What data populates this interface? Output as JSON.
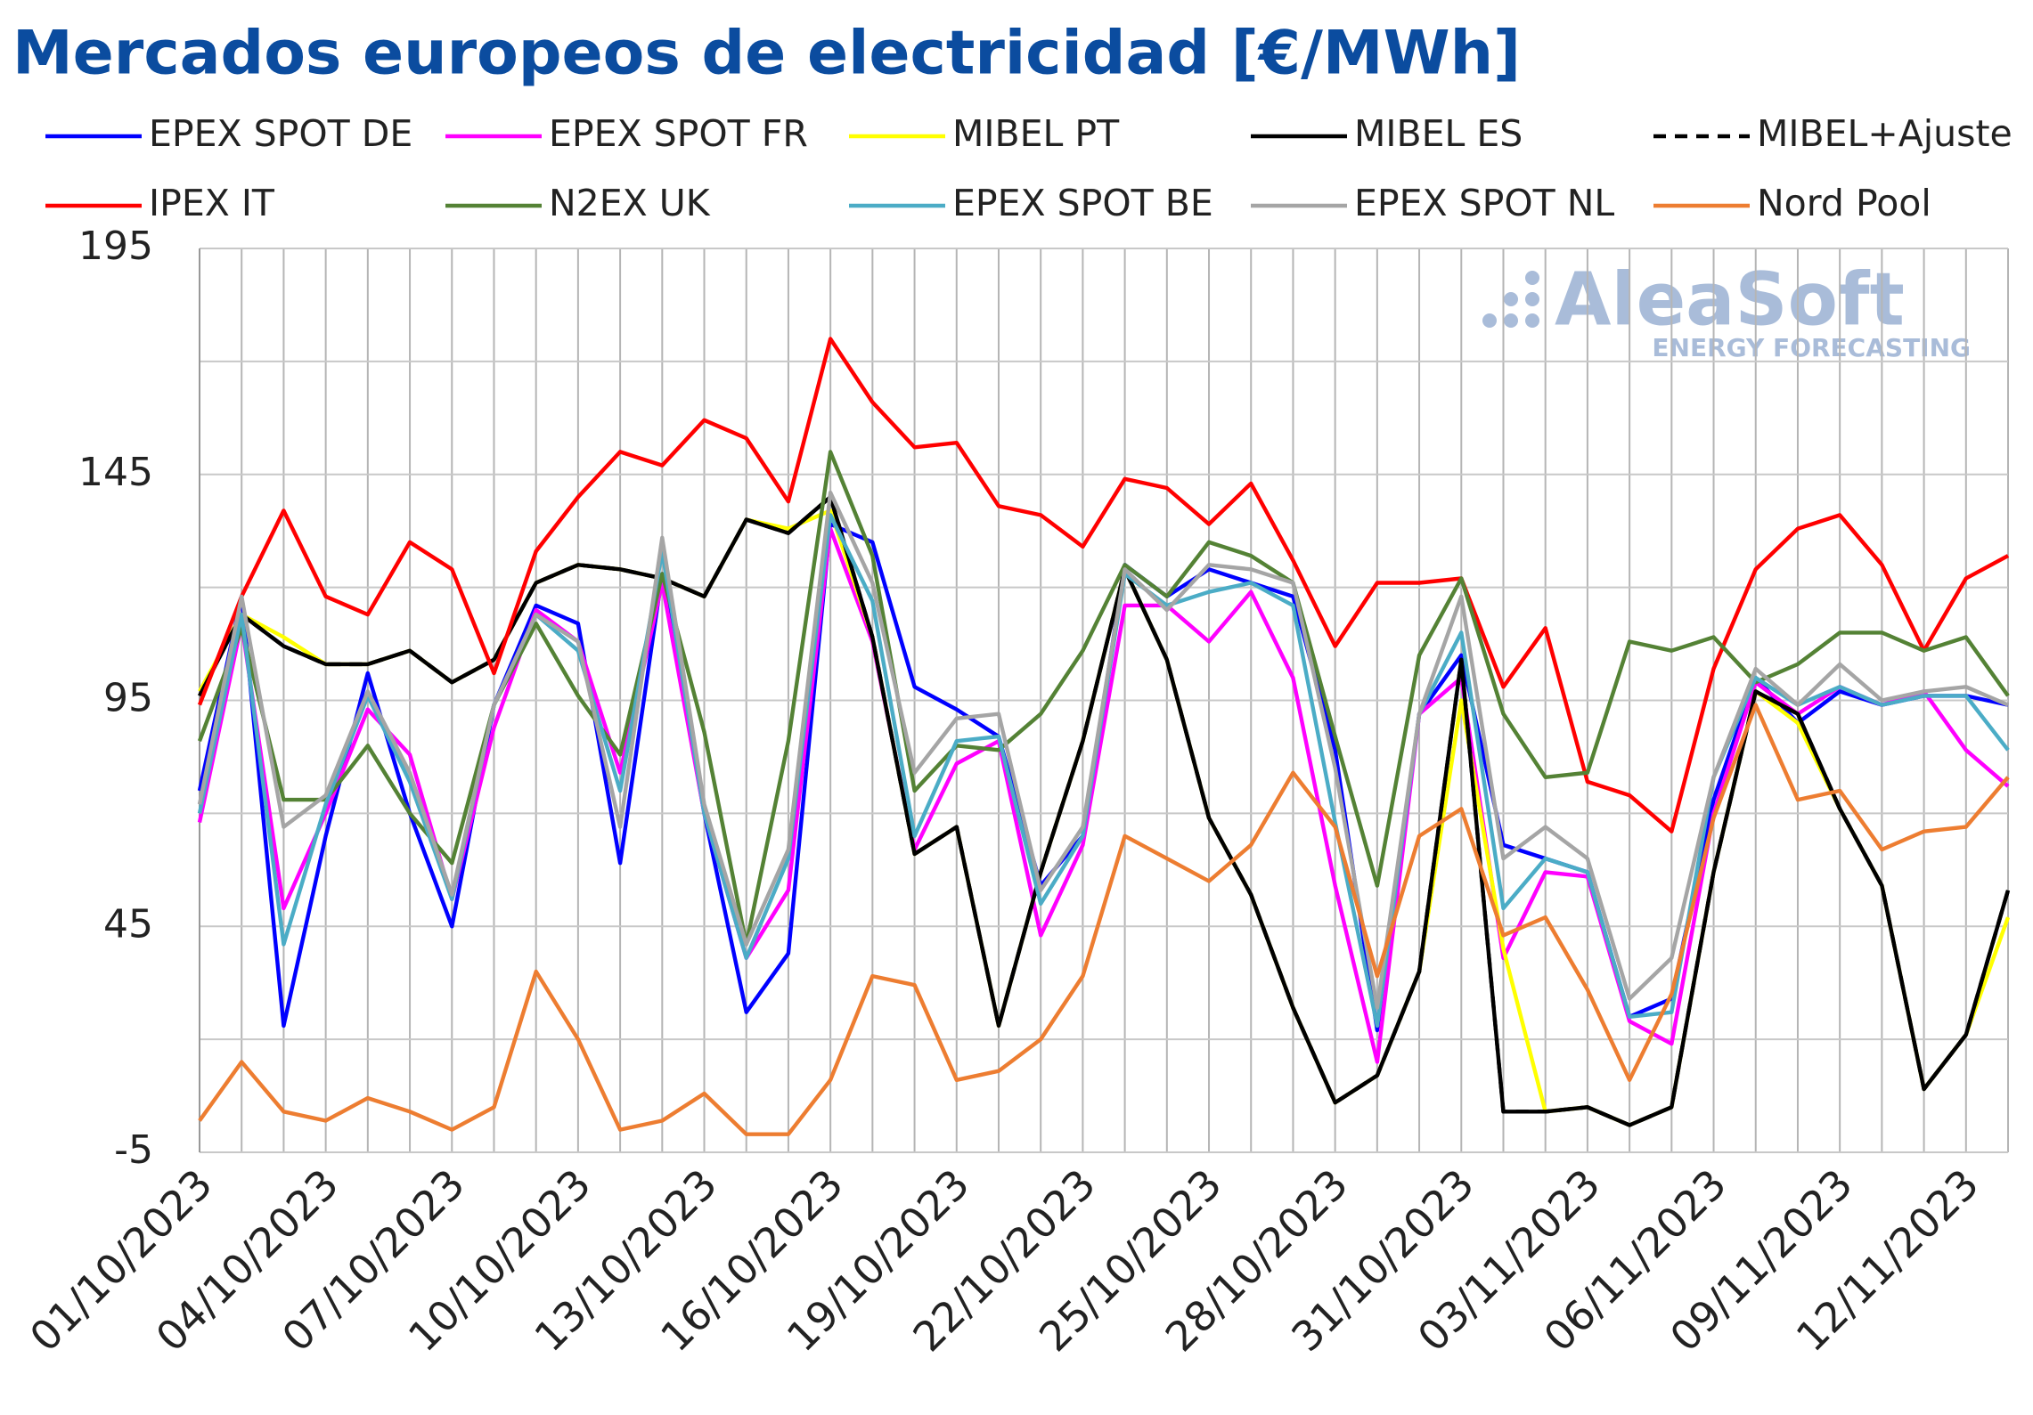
{
  "chart_data": {
    "type": "line",
    "title": "Mercados europeos de electricidad [€/MWh]",
    "watermark": {
      "name": "AleaSoft",
      "tagline": "ENERGY FORECASTING"
    },
    "categories": [
      "01/10/2023",
      null,
      null,
      "04/10/2023",
      null,
      null,
      "07/10/2023",
      null,
      null,
      "10/10/2023",
      null,
      null,
      "13/10/2023",
      null,
      null,
      "16/10/2023",
      null,
      null,
      "19/10/2023",
      null,
      null,
      "22/10/2023",
      null,
      null,
      "25/10/2023",
      null,
      null,
      "28/10/2023",
      null,
      null,
      "31/10/2023",
      null,
      null,
      "03/11/2023",
      null,
      null,
      "06/11/2023",
      null,
      null,
      "09/11/2023",
      null,
      null,
      "12/11/2023",
      null
    ],
    "ylim": [
      -5,
      195
    ],
    "yticks": [
      -5,
      45,
      95,
      145,
      195
    ],
    "ygrid_minor": [
      20,
      70,
      120,
      170
    ],
    "grid": true,
    "legend": "top",
    "series": [
      {
        "name": "EPEX SPOT DE",
        "color": "#0000ff",
        "values": [
          75,
          118,
          23,
          65,
          101,
          70,
          45,
          94,
          116,
          112,
          59,
          123,
          70,
          26,
          39,
          134,
          130,
          98,
          93,
          87,
          54,
          65,
          125,
          118,
          124,
          121,
          118,
          84,
          22,
          92,
          105,
          63,
          60,
          57,
          25,
          29,
          73,
          100,
          90,
          97,
          94,
          96,
          96,
          94
        ]
      },
      {
        "name": "EPEX SPOT FR",
        "color": "#ff00ff",
        "values": [
          68,
          112,
          49,
          70,
          93,
          83,
          51,
          89,
          115,
          108,
          79,
          121,
          70,
          38,
          53,
          133,
          108,
          62,
          81,
          86,
          43,
          63,
          116,
          116,
          108,
          119,
          100,
          54,
          15,
          92,
          100,
          38,
          57,
          56,
          24,
          19,
          70,
          99,
          92,
          98,
          94,
          97,
          84,
          76
        ]
      },
      {
        "name": "MIBEL PT",
        "color": "#ffff00",
        "values": [
          97,
          114,
          109,
          103,
          103,
          106,
          99,
          104,
          121,
          125,
          124,
          122,
          118,
          135,
          133,
          137,
          109,
          61,
          67,
          23,
          57,
          86,
          124,
          104,
          69,
          52,
          27,
          6,
          12,
          35,
          95,
          40,
          4,
          5,
          1,
          5,
          57,
          97,
          90,
          71,
          54,
          9,
          21,
          47
        ]
      },
      {
        "name": "MIBEL ES",
        "color": "#000000",
        "values": [
          96,
          114,
          107,
          103,
          103,
          106,
          99,
          104,
          121,
          125,
          124,
          122,
          118,
          135,
          132,
          140,
          109,
          61,
          67,
          23,
          57,
          86,
          124,
          104,
          69,
          52,
          27,
          6,
          12,
          35,
          104,
          4,
          4,
          5,
          1,
          5,
          57,
          97,
          92,
          71,
          54,
          9,
          21,
          53
        ]
      },
      {
        "name": "MIBEL+Ajuste",
        "color": "#000000",
        "dash": true,
        "values": [
          96,
          114,
          107,
          103,
          103,
          106,
          99,
          104,
          121,
          125,
          124,
          122,
          118,
          135,
          132,
          140,
          109,
          61,
          67,
          23,
          57,
          86,
          124,
          104,
          69,
          52,
          27,
          6,
          12,
          35,
          104,
          4,
          4,
          5,
          1,
          5,
          57,
          97,
          92,
          71,
          54,
          9,
          21,
          53
        ]
      },
      {
        "name": "IPEX IT",
        "color": "#ff0000",
        "values": [
          94,
          118,
          137,
          118,
          114,
          130,
          124,
          101,
          128,
          140,
          150,
          147,
          157,
          153,
          139,
          175,
          161,
          151,
          152,
          138,
          136,
          129,
          144,
          142,
          134,
          143,
          126,
          107,
          121,
          121,
          122,
          98,
          111,
          77,
          74,
          66,
          102,
          124,
          133,
          136,
          125,
          106,
          122,
          127
        ]
      },
      {
        "name": "N2EX UK",
        "color": "#548235",
        "values": [
          86,
          111,
          73,
          73,
          85,
          70,
          59,
          94,
          112,
          96,
          83,
          123,
          88,
          41,
          86,
          150,
          127,
          75,
          85,
          84,
          92,
          106,
          125,
          118,
          130,
          127,
          121,
          87,
          54,
          105,
          122,
          92,
          78,
          79,
          108,
          106,
          109,
          99,
          103,
          110,
          110,
          106,
          109,
          96
        ]
      },
      {
        "name": "EPEX SPOT BE",
        "color": "#4bacc6",
        "values": [
          70,
          114,
          41,
          72,
          96,
          77,
          51,
          94,
          114,
          106,
          75,
          128,
          70,
          38,
          60,
          136,
          117,
          65,
          86,
          87,
          50,
          65,
          123,
          116,
          119,
          121,
          116,
          68,
          23,
          92,
          110,
          49,
          60,
          57,
          25,
          26,
          78,
          100,
          94,
          98,
          94,
          96,
          96,
          84
        ]
      },
      {
        "name": "EPEX SPOT NL",
        "color": "#a5a5a5",
        "values": [
          72,
          118,
          67,
          74,
          97,
          79,
          52,
          94,
          114,
          108,
          67,
          131,
          72,
          41,
          62,
          141,
          121,
          79,
          91,
          92,
          53,
          67,
          124,
          115,
          125,
          124,
          121,
          80,
          27,
          92,
          118,
          60,
          67,
          60,
          29,
          38,
          78,
          102,
          94,
          103,
          95,
          97,
          98,
          94
        ]
      },
      {
        "name": "Nord Pool",
        "color": "#ed7d31",
        "values": [
          2,
          15,
          4,
          2,
          7,
          4,
          0,
          5,
          35,
          20,
          0,
          2,
          8,
          -1,
          -1,
          11,
          34,
          32,
          11,
          13,
          20,
          34,
          65,
          60,
          55,
          63,
          79,
          67,
          34,
          65,
          71,
          43,
          47,
          31,
          11,
          30,
          69,
          94,
          73,
          75,
          62,
          66,
          67,
          78
        ]
      }
    ]
  }
}
